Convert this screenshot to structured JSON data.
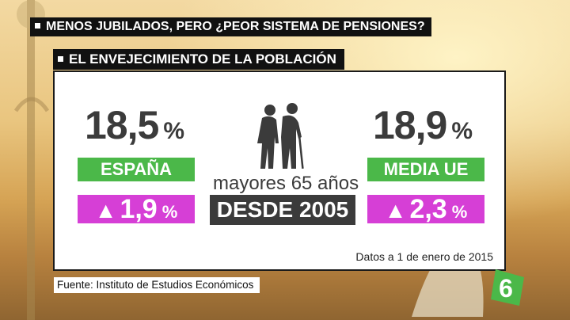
{
  "ticker": {
    "text": "MENOS JUBILADOS, PERO ¿PEOR SISTEMA DE PENSIONES?"
  },
  "subhead": {
    "text": "EL ENVEJECIMIENTO DE LA POBLACIÓN"
  },
  "left": {
    "value": "18,5",
    "unit": "%",
    "label": "ESPAÑA",
    "change_arrow": "▲",
    "change": "1,9",
    "change_unit": "%"
  },
  "center": {
    "icon": "elderly-couple-icon",
    "label": "mayores 65 años",
    "period": "DESDE 2005"
  },
  "right": {
    "value": "18,9",
    "unit": "%",
    "label": "MEDIA UE",
    "change_arrow": "▲",
    "change": "2,3",
    "change_unit": "%"
  },
  "footnote": "Datos a 1 de enero de 2015",
  "source": "Fuente: Instituto de Estudios Económicos",
  "logo": {
    "text": "6",
    "color": "#4bb849"
  },
  "colors": {
    "green": "#4bb849",
    "magenta": "#d63fd6",
    "dark": "#3b3b3b"
  }
}
